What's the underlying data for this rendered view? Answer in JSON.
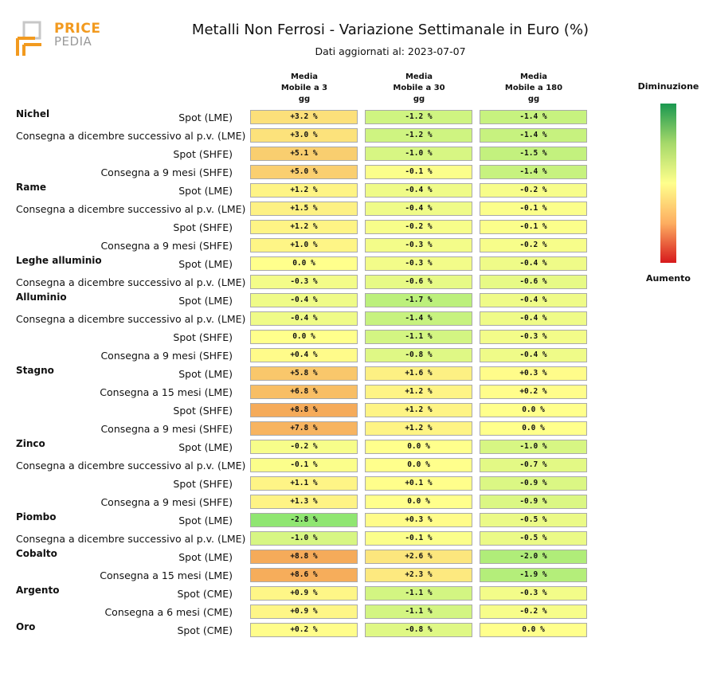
{
  "logo": {
    "text_primary": "PRICE",
    "text_secondary": "PEDIA",
    "accent_color": "#f29a1f"
  },
  "title": "Metalli Non Ferrosi - Variazione Settimanale in Euro (%)",
  "subtitle": "Dati aggiornati al: 2023-07-07",
  "columns": [
    [
      "Media",
      "Mobile a 3",
      "gg"
    ],
    [
      "Media",
      "Mobile a 30",
      "gg"
    ],
    [
      "Media",
      "Mobile a 180",
      "gg"
    ]
  ],
  "legend": {
    "top_label": "Diminuzione",
    "bottom_label": "Aumento"
  },
  "chart_data": {
    "type": "heatmap",
    "title": "Metalli Non Ferrosi - Variazione Settimanale in Euro (%)",
    "subtitle": "Dati aggiornati al: 2023-07-07",
    "columns": [
      "Media Mobile a 3 gg",
      "Media Mobile a 30 gg",
      "Media Mobile a 180 gg"
    ],
    "colorscale": {
      "low_color": "#1a9850",
      "mid_color": "#ffff8c",
      "high_color": "#d7191c",
      "low_label": "Diminuzione",
      "high_label": "Aumento"
    },
    "groups": [
      {
        "metal": "Nichel",
        "rows": [
          {
            "label": "Spot (LME)",
            "values": [
              "+3.2 %",
              "-1.2 %",
              "-1.4 %"
            ]
          },
          {
            "label": "Consegna a dicembre successivo al p.v. (LME)",
            "values": [
              "+3.0 %",
              "-1.2 %",
              "-1.4 %"
            ]
          },
          {
            "label": "Spot (SHFE)",
            "values": [
              "+5.1 %",
              "-1.0 %",
              "-1.5 %"
            ]
          },
          {
            "label": "Consegna a 9 mesi (SHFE)",
            "values": [
              "+5.0 %",
              "-0.1 %",
              "-1.4 %"
            ]
          }
        ]
      },
      {
        "metal": "Rame",
        "rows": [
          {
            "label": "Spot (LME)",
            "values": [
              "+1.2 %",
              "-0.4 %",
              "-0.2 %"
            ]
          },
          {
            "label": "Consegna a dicembre successivo al p.v. (LME)",
            "values": [
              "+1.5 %",
              "-0.4 %",
              "-0.1 %"
            ]
          },
          {
            "label": "Spot (SHFE)",
            "values": [
              "+1.2 %",
              "-0.2 %",
              "-0.1 %"
            ]
          },
          {
            "label": "Consegna a 9 mesi (SHFE)",
            "values": [
              "+1.0 %",
              "-0.3 %",
              "-0.2 %"
            ]
          }
        ]
      },
      {
        "metal": "Leghe alluminio",
        "rows": [
          {
            "label": "Spot (LME)",
            "values": [
              "0.0 %",
              "-0.3 %",
              "-0.4 %"
            ]
          },
          {
            "label": "Consegna a dicembre successivo al p.v. (LME)",
            "values": [
              "-0.3 %",
              "-0.6 %",
              "-0.6 %"
            ]
          }
        ]
      },
      {
        "metal": "Alluminio",
        "rows": [
          {
            "label": "Spot (LME)",
            "values": [
              "-0.4 %",
              "-1.7 %",
              "-0.4 %"
            ]
          },
          {
            "label": "Consegna a dicembre successivo al p.v. (LME)",
            "values": [
              "-0.4 %",
              "-1.4 %",
              "-0.4 %"
            ]
          },
          {
            "label": "Spot (SHFE)",
            "values": [
              "0.0 %",
              "-1.1 %",
              "-0.3 %"
            ]
          },
          {
            "label": "Consegna a 9 mesi (SHFE)",
            "values": [
              "+0.4 %",
              "-0.8 %",
              "-0.4 %"
            ]
          }
        ]
      },
      {
        "metal": "Stagno",
        "rows": [
          {
            "label": "Spot (LME)",
            "values": [
              "+5.8 %",
              "+1.6 %",
              "+0.3 %"
            ]
          },
          {
            "label": "Consegna a 15 mesi (LME)",
            "values": [
              "+6.8 %",
              "+1.2 %",
              "+0.2 %"
            ]
          },
          {
            "label": "Spot (SHFE)",
            "values": [
              "+8.8 %",
              "+1.2 %",
              "0.0 %"
            ]
          },
          {
            "label": "Consegna a 9 mesi (SHFE)",
            "values": [
              "+7.8 %",
              "+1.2 %",
              "0.0 %"
            ]
          }
        ]
      },
      {
        "metal": "Zinco",
        "rows": [
          {
            "label": "Spot (LME)",
            "values": [
              "-0.2 %",
              "0.0 %",
              "-1.0 %"
            ]
          },
          {
            "label": "Consegna a dicembre successivo al p.v. (LME)",
            "values": [
              "-0.1 %",
              "0.0 %",
              "-0.7 %"
            ]
          },
          {
            "label": "Spot (SHFE)",
            "values": [
              "+1.1 %",
              "+0.1 %",
              "-0.9 %"
            ]
          },
          {
            "label": "Consegna a 9 mesi (SHFE)",
            "values": [
              "+1.3 %",
              "0.0 %",
              "-0.9 %"
            ]
          }
        ]
      },
      {
        "metal": "Piombo",
        "rows": [
          {
            "label": "Spot (LME)",
            "values": [
              "-2.8 %",
              "+0.3 %",
              "-0.5 %"
            ]
          },
          {
            "label": "Consegna a dicembre successivo al p.v. (LME)",
            "values": [
              "-1.0 %",
              "-0.1 %",
              "-0.5 %"
            ]
          }
        ]
      },
      {
        "metal": "Cobalto",
        "rows": [
          {
            "label": "Spot (LME)",
            "values": [
              "+8.8 %",
              "+2.6 %",
              "-2.0 %"
            ]
          },
          {
            "label": "Consegna a 15 mesi (LME)",
            "values": [
              "+8.6 %",
              "+2.3 %",
              "-1.9 %"
            ]
          }
        ]
      },
      {
        "metal": "Argento",
        "rows": [
          {
            "label": "Spot (CME)",
            "values": [
              "+0.9 %",
              "-1.1 %",
              "-0.3 %"
            ]
          },
          {
            "label": "Consegna a 6 mesi (CME)",
            "values": [
              "+0.9 %",
              "-1.1 %",
              "-0.2 %"
            ]
          }
        ]
      },
      {
        "metal": "Oro",
        "rows": [
          {
            "label": "Spot (CME)",
            "values": [
              "+0.2 %",
              "-0.8 %",
              "0.0 %"
            ]
          }
        ]
      }
    ]
  }
}
